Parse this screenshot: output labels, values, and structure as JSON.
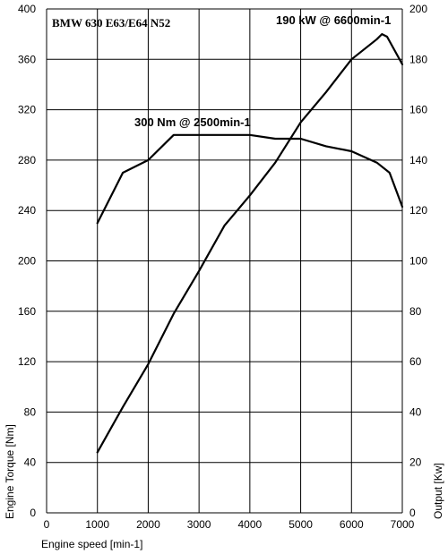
{
  "chart_data": {
    "type": "line",
    "title": "BMW 630 E63/E64 N52",
    "xlabel": "Engine speed [min-1]",
    "ylabel_left": "Engine Torque [Nm]",
    "ylabel_right": "Output [Kw]",
    "xlim": [
      0,
      7000
    ],
    "ylim_left": [
      0,
      400
    ],
    "ylim_right": [
      0,
      200
    ],
    "x_ticks": [
      0,
      1000,
      2000,
      3000,
      4000,
      5000,
      6000,
      7000
    ],
    "y_ticks_left": [
      0,
      40,
      80,
      120,
      160,
      200,
      240,
      280,
      320,
      360,
      400
    ],
    "y_ticks_right": [
      0,
      20,
      40,
      60,
      80,
      100,
      120,
      140,
      160,
      180,
      200
    ],
    "grid": true,
    "series": [
      {
        "axis": "left",
        "x": [
          1000,
          1500,
          2000,
          2500,
          3000,
          3500,
          4000,
          4500,
          5000,
          5500,
          6000,
          6500,
          6750,
          7000
        ],
        "values": [
          230,
          270,
          280,
          300,
          300,
          300,
          300,
          297,
          297,
          291,
          287,
          278,
          270,
          243
        ]
      },
      {
        "axis": "right",
        "x": [
          1000,
          1500,
          2000,
          2500,
          3000,
          3500,
          4000,
          4500,
          5000,
          5500,
          6000,
          6500,
          6600,
          6700,
          7000
        ],
        "values": [
          24,
          42,
          59,
          79,
          96,
          114,
          126,
          139,
          155,
          167,
          180,
          188,
          190,
          189,
          178
        ]
      }
    ],
    "annotations": [
      {
        "text": "300 Nm @ 2500min-1"
      },
      {
        "text": "190 kW @ 6600min-1"
      }
    ]
  }
}
